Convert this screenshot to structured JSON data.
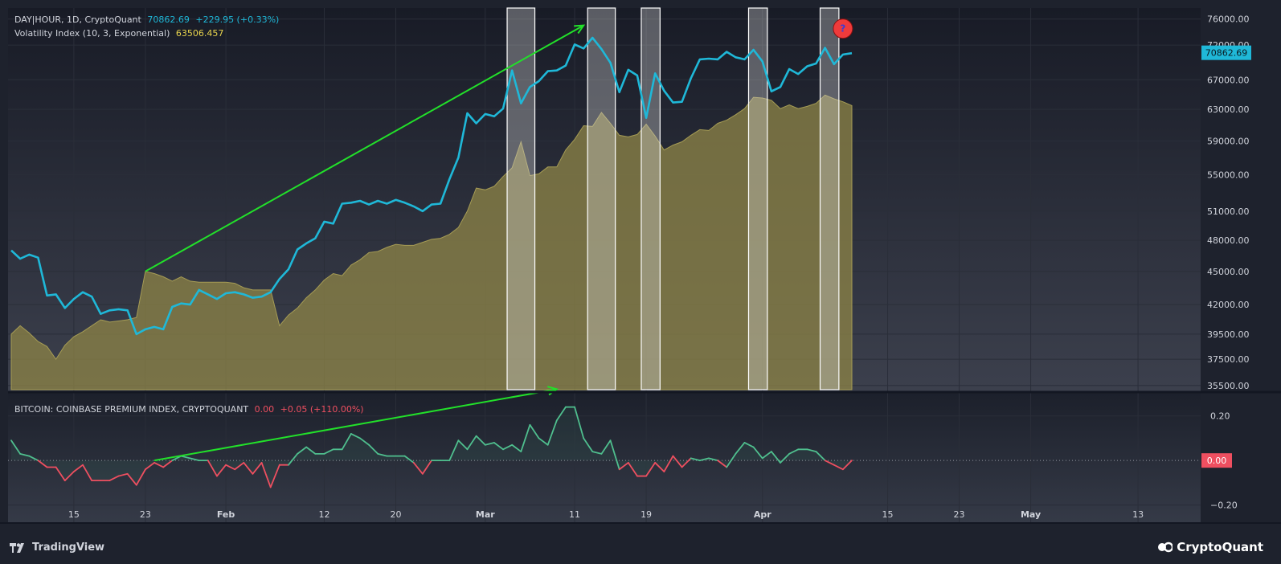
{
  "legend": {
    "symbol": "DAY|HOUR, 1D, CryptoQuant",
    "price": "70862.69",
    "change": "+229.95 (+0.33%)",
    "volatility_label": "Volatility Index (10, 3, Exponential)",
    "volatility_value": "63506.457",
    "premium_label": "BITCOIN: COINBASE PREMIUM INDEX, CRYPTOQUANT",
    "premium_value": "0.00",
    "premium_change": "+0.05 (+110.00%)"
  },
  "footer": {
    "left_brand": "TradingView",
    "right_brand": "CryptoQuant"
  },
  "colors": {
    "background": "#1e222d",
    "price_line": "#1fb8d8",
    "volatility_fill": "#8a8246",
    "premium_positive": "#4fbf8e",
    "premium_negative": "#ef4f60",
    "arrow": "#22e02a",
    "price_badge": "#1fb8d8",
    "zero_badge": "#ef4f60",
    "question_marker": "#ef3b3b"
  },
  "chart_data": [
    {
      "type": "line",
      "series": [
        {
          "name": "DAY|HOUR, 1D, CryptoQuant",
          "x": [
            "2024-01-08",
            "2024-01-09",
            "2024-01-10",
            "2024-01-11",
            "2024-01-12",
            "2024-01-13",
            "2024-01-14",
            "2024-01-15",
            "2024-01-16",
            "2024-01-17",
            "2024-01-18",
            "2024-01-19",
            "2024-01-20",
            "2024-01-21",
            "2024-01-22",
            "2024-01-23",
            "2024-01-24",
            "2024-01-25",
            "2024-01-26",
            "2024-01-27",
            "2024-01-28",
            "2024-01-29",
            "2024-01-30",
            "2024-01-31",
            "2024-02-01",
            "2024-02-02",
            "2024-02-03",
            "2024-02-04",
            "2024-02-05",
            "2024-02-06",
            "2024-02-07",
            "2024-02-08",
            "2024-02-09",
            "2024-02-10",
            "2024-02-11",
            "2024-02-12",
            "2024-02-13",
            "2024-02-14",
            "2024-02-15",
            "2024-02-16",
            "2024-02-17",
            "2024-02-18",
            "2024-02-19",
            "2024-02-20",
            "2024-02-21",
            "2024-02-22",
            "2024-02-23",
            "2024-02-24",
            "2024-02-25",
            "2024-02-26",
            "2024-02-27",
            "2024-02-28",
            "2024-02-29",
            "2024-03-01",
            "2024-03-02",
            "2024-03-03",
            "2024-03-04",
            "2024-03-05",
            "2024-03-06",
            "2024-03-07",
            "2024-03-08",
            "2024-03-09",
            "2024-03-10",
            "2024-03-11",
            "2024-03-12",
            "2024-03-13",
            "2024-03-14",
            "2024-03-15",
            "2024-03-16",
            "2024-03-17",
            "2024-03-18",
            "2024-03-19",
            "2024-03-20",
            "2024-03-21",
            "2024-03-22",
            "2024-03-23",
            "2024-03-24",
            "2024-03-25",
            "2024-03-26",
            "2024-03-27",
            "2024-03-28",
            "2024-03-29",
            "2024-03-30",
            "2024-03-31",
            "2024-04-01",
            "2024-04-02",
            "2024-04-03",
            "2024-04-04",
            "2024-04-05",
            "2024-04-06",
            "2024-04-07",
            "2024-04-08",
            "2024-04-09",
            "2024-04-10",
            "2024-04-11"
          ],
          "values": [
            47000,
            46200,
            46600,
            46300,
            42800,
            42900,
            41700,
            42500,
            43100,
            42700,
            41200,
            41500,
            41600,
            41500,
            39500,
            39900,
            40100,
            39900,
            41800,
            42100,
            42000,
            43300,
            42900,
            42500,
            43000,
            43100,
            42900,
            42600,
            42700,
            43100,
            44300,
            45200,
            47100,
            47700,
            48200,
            49900,
            49700,
            51800,
            51900,
            52100,
            51700,
            52100,
            51800,
            52200,
            51900,
            51500,
            51000,
            51700,
            51800,
            54500,
            57000,
            62500,
            61200,
            62400,
            62100,
            63100,
            68300,
            63800,
            66000,
            66800,
            68200,
            68300,
            69000,
            72100,
            71500,
            73100,
            71400,
            69400,
            65300,
            68400,
            67600,
            61900,
            67900,
            65500,
            63900,
            64000,
            67200,
            69900,
            70000,
            69900,
            71000,
            70200,
            69900,
            71300,
            69600,
            65400,
            66000,
            68500,
            67800,
            68900,
            69300,
            71600,
            69200,
            70600,
            70800
          ]
        },
        {
          "name": "Volatility Index (10, 3, Exponential)",
          "x": [
            "2024-01-08",
            "2024-01-09",
            "2024-01-10",
            "2024-01-11",
            "2024-01-12",
            "2024-01-13",
            "2024-01-14",
            "2024-01-15",
            "2024-01-16",
            "2024-01-17",
            "2024-01-18",
            "2024-01-19",
            "2024-01-20",
            "2024-01-21",
            "2024-01-22",
            "2024-01-23",
            "2024-01-24",
            "2024-01-25",
            "2024-01-26",
            "2024-01-27",
            "2024-01-28",
            "2024-01-29",
            "2024-01-30",
            "2024-01-31",
            "2024-02-01",
            "2024-02-02",
            "2024-02-03",
            "2024-02-04",
            "2024-02-05",
            "2024-02-06",
            "2024-02-07",
            "2024-02-08",
            "2024-02-09",
            "2024-02-10",
            "2024-02-11",
            "2024-02-12",
            "2024-02-13",
            "2024-02-14",
            "2024-02-15",
            "2024-02-16",
            "2024-02-17",
            "2024-02-18",
            "2024-02-19",
            "2024-02-20",
            "2024-02-21",
            "2024-02-22",
            "2024-02-23",
            "2024-02-24",
            "2024-02-25",
            "2024-02-26",
            "2024-02-27",
            "2024-02-28",
            "2024-02-29",
            "2024-03-01",
            "2024-03-02",
            "2024-03-03",
            "2024-03-04",
            "2024-03-05",
            "2024-03-06",
            "2024-03-07",
            "2024-03-08",
            "2024-03-09",
            "2024-03-10",
            "2024-03-11",
            "2024-03-12",
            "2024-03-13",
            "2024-03-14",
            "2024-03-15",
            "2024-03-16",
            "2024-03-17",
            "2024-03-18",
            "2024-03-19",
            "2024-03-20",
            "2024-03-21",
            "2024-03-22",
            "2024-03-23",
            "2024-03-24",
            "2024-03-25",
            "2024-03-26",
            "2024-03-27",
            "2024-03-28",
            "2024-03-29",
            "2024-03-30",
            "2024-03-31",
            "2024-04-01",
            "2024-04-02",
            "2024-04-03",
            "2024-04-04",
            "2024-04-05",
            "2024-04-06",
            "2024-04-07",
            "2024-04-08",
            "2024-04-09",
            "2024-04-10",
            "2024-04-11"
          ],
          "values": [
            39500,
            40200,
            39600,
            38900,
            38500,
            37500,
            38600,
            39300,
            39700,
            40200,
            40700,
            40500,
            40600,
            40700,
            40900,
            45000,
            44800,
            44500,
            44100,
            44500,
            44100,
            44000,
            44000,
            44000,
            44000,
            43900,
            43500,
            43300,
            43300,
            43300,
            40200,
            41100,
            41700,
            42600,
            43300,
            44200,
            44800,
            44600,
            45600,
            46100,
            46800,
            46900,
            47300,
            47600,
            47500,
            47500,
            47800,
            48100,
            48200,
            48600,
            49300,
            51000,
            53500,
            53300,
            53700,
            54800,
            55800,
            58900,
            54900,
            55100,
            55900,
            55900,
            57900,
            59200,
            60900,
            60800,
            62600,
            61200,
            59700,
            59500,
            59800,
            61100,
            59600,
            57900,
            58500,
            58900,
            59700,
            60400,
            60300,
            61200,
            61600,
            62300,
            63100,
            64600,
            64500,
            64200,
            63100,
            63600,
            63100,
            63400,
            63800,
            64900,
            64400,
            64000,
            63500
          ]
        },
        {
          "name": "BITCOIN: COINBASE PREMIUM INDEX, CRYPTOQUANT",
          "x": [
            "2024-01-08",
            "2024-01-09",
            "2024-01-10",
            "2024-01-11",
            "2024-01-12",
            "2024-01-13",
            "2024-01-14",
            "2024-01-15",
            "2024-01-16",
            "2024-01-17",
            "2024-01-18",
            "2024-01-19",
            "2024-01-20",
            "2024-01-21",
            "2024-01-22",
            "2024-01-23",
            "2024-01-24",
            "2024-01-25",
            "2024-01-26",
            "2024-01-27",
            "2024-01-28",
            "2024-01-29",
            "2024-01-30",
            "2024-01-31",
            "2024-02-01",
            "2024-02-02",
            "2024-02-03",
            "2024-02-04",
            "2024-02-05",
            "2024-02-06",
            "2024-02-07",
            "2024-02-08",
            "2024-02-09",
            "2024-02-10",
            "2024-02-11",
            "2024-02-12",
            "2024-02-13",
            "2024-02-14",
            "2024-02-15",
            "2024-02-16",
            "2024-02-17",
            "2024-02-18",
            "2024-02-19",
            "2024-02-20",
            "2024-02-21",
            "2024-02-22",
            "2024-02-23",
            "2024-02-24",
            "2024-02-25",
            "2024-02-26",
            "2024-02-27",
            "2024-02-28",
            "2024-02-29",
            "2024-03-01",
            "2024-03-02",
            "2024-03-03",
            "2024-03-04",
            "2024-03-05",
            "2024-03-06",
            "2024-03-07",
            "2024-03-08",
            "2024-03-09",
            "2024-03-10",
            "2024-03-11",
            "2024-03-12",
            "2024-03-13",
            "2024-03-14",
            "2024-03-15",
            "2024-03-16",
            "2024-03-17",
            "2024-03-18",
            "2024-03-19",
            "2024-03-20",
            "2024-03-21",
            "2024-03-22",
            "2024-03-23",
            "2024-03-24",
            "2024-03-25",
            "2024-03-26",
            "2024-03-27",
            "2024-03-28",
            "2024-03-29",
            "2024-03-30",
            "2024-03-31",
            "2024-04-01",
            "2024-04-02",
            "2024-04-03",
            "2024-04-04",
            "2024-04-05",
            "2024-04-06",
            "2024-04-07",
            "2024-04-08",
            "2024-04-09",
            "2024-04-10",
            "2024-04-11"
          ],
          "values": [
            0.09,
            0.03,
            0.02,
            0.0,
            -0.03,
            -0.03,
            -0.09,
            -0.05,
            -0.02,
            -0.09,
            -0.09,
            -0.09,
            -0.07,
            -0.06,
            -0.11,
            -0.04,
            -0.01,
            -0.03,
            0.0,
            0.02,
            0.01,
            0.0,
            0.0,
            -0.07,
            -0.02,
            -0.04,
            -0.01,
            -0.06,
            -0.01,
            -0.12,
            -0.02,
            -0.02,
            0.03,
            0.06,
            0.03,
            0.03,
            0.05,
            0.05,
            0.12,
            0.1,
            0.07,
            0.03,
            0.02,
            0.02,
            0.02,
            -0.01,
            -0.06,
            0.0,
            0.0,
            0.0,
            0.09,
            0.05,
            0.11,
            0.07,
            0.08,
            0.05,
            0.07,
            0.04,
            0.16,
            0.1,
            0.07,
            0.18,
            0.24,
            0.24,
            0.1,
            0.04,
            0.03,
            0.09,
            -0.04,
            -0.01,
            -0.07,
            -0.07,
            -0.01,
            -0.05,
            0.02,
            -0.03,
            0.01,
            0.0,
            0.01,
            0.0,
            -0.03,
            0.03,
            0.08,
            0.06,
            0.01,
            0.04,
            -0.01,
            0.03,
            0.05,
            0.05,
            0.04,
            0.0,
            -0.02,
            -0.04,
            0.0
          ]
        }
      ],
      "axes": {
        "price_ticks": [
          "76000.00",
          "72000.00",
          "67000.00",
          "63000.00",
          "59000.00",
          "55000.00",
          "51000.00",
          "48000.00",
          "45000.00",
          "42000.00",
          "39500.00",
          "37500.00",
          "35500.00"
        ],
        "price_scale": "log",
        "price_ylim": [
          35200,
          77500
        ],
        "premium_ticks": [
          "0.20",
          "0.00",
          "−0.20"
        ],
        "premium_ylim": [
          -0.27,
          0.3
        ],
        "x_ticks": [
          "15",
          "23",
          "Feb",
          "12",
          "20",
          "Mar",
          "11",
          "19",
          "Apr",
          "15",
          "23",
          "May",
          "13"
        ],
        "x_tick_dates": [
          "2024-01-15",
          "2024-01-23",
          "2024-02-01",
          "2024-02-12",
          "2024-02-20",
          "2024-03-01",
          "2024-03-11",
          "2024-03-19",
          "2024-04-01",
          "2024-04-15",
          "2024-04-23",
          "2024-05-01",
          "2024-05-13"
        ],
        "xlim": [
          "2024-01-08",
          "2024-05-20"
        ],
        "grid": true
      },
      "badges": {
        "price": "70862.69",
        "premium": "0.00"
      },
      "highlights": [
        {
          "from": "2024-03-04",
          "to": "2024-03-06"
        },
        {
          "from": "2024-03-13",
          "to": "2024-03-15"
        },
        {
          "from": "2024-03-19",
          "to": "2024-03-20"
        },
        {
          "from": "2024-03-31",
          "to": "2024-04-01"
        },
        {
          "from": "2024-04-08",
          "to": "2024-04-09"
        }
      ],
      "annotations": [
        {
          "type": "arrow",
          "pane": "price",
          "from": [
            "2024-01-23",
            45000
          ],
          "to": [
            "2024-03-12",
            75000
          ]
        },
        {
          "type": "arrow",
          "pane": "premium",
          "from": [
            "2024-01-24",
            0.0
          ],
          "to": [
            "2024-03-09",
            0.32
          ]
        },
        {
          "type": "marker",
          "label": "?",
          "at": [
            "2024-04-10",
            74500
          ]
        }
      ]
    }
  ]
}
